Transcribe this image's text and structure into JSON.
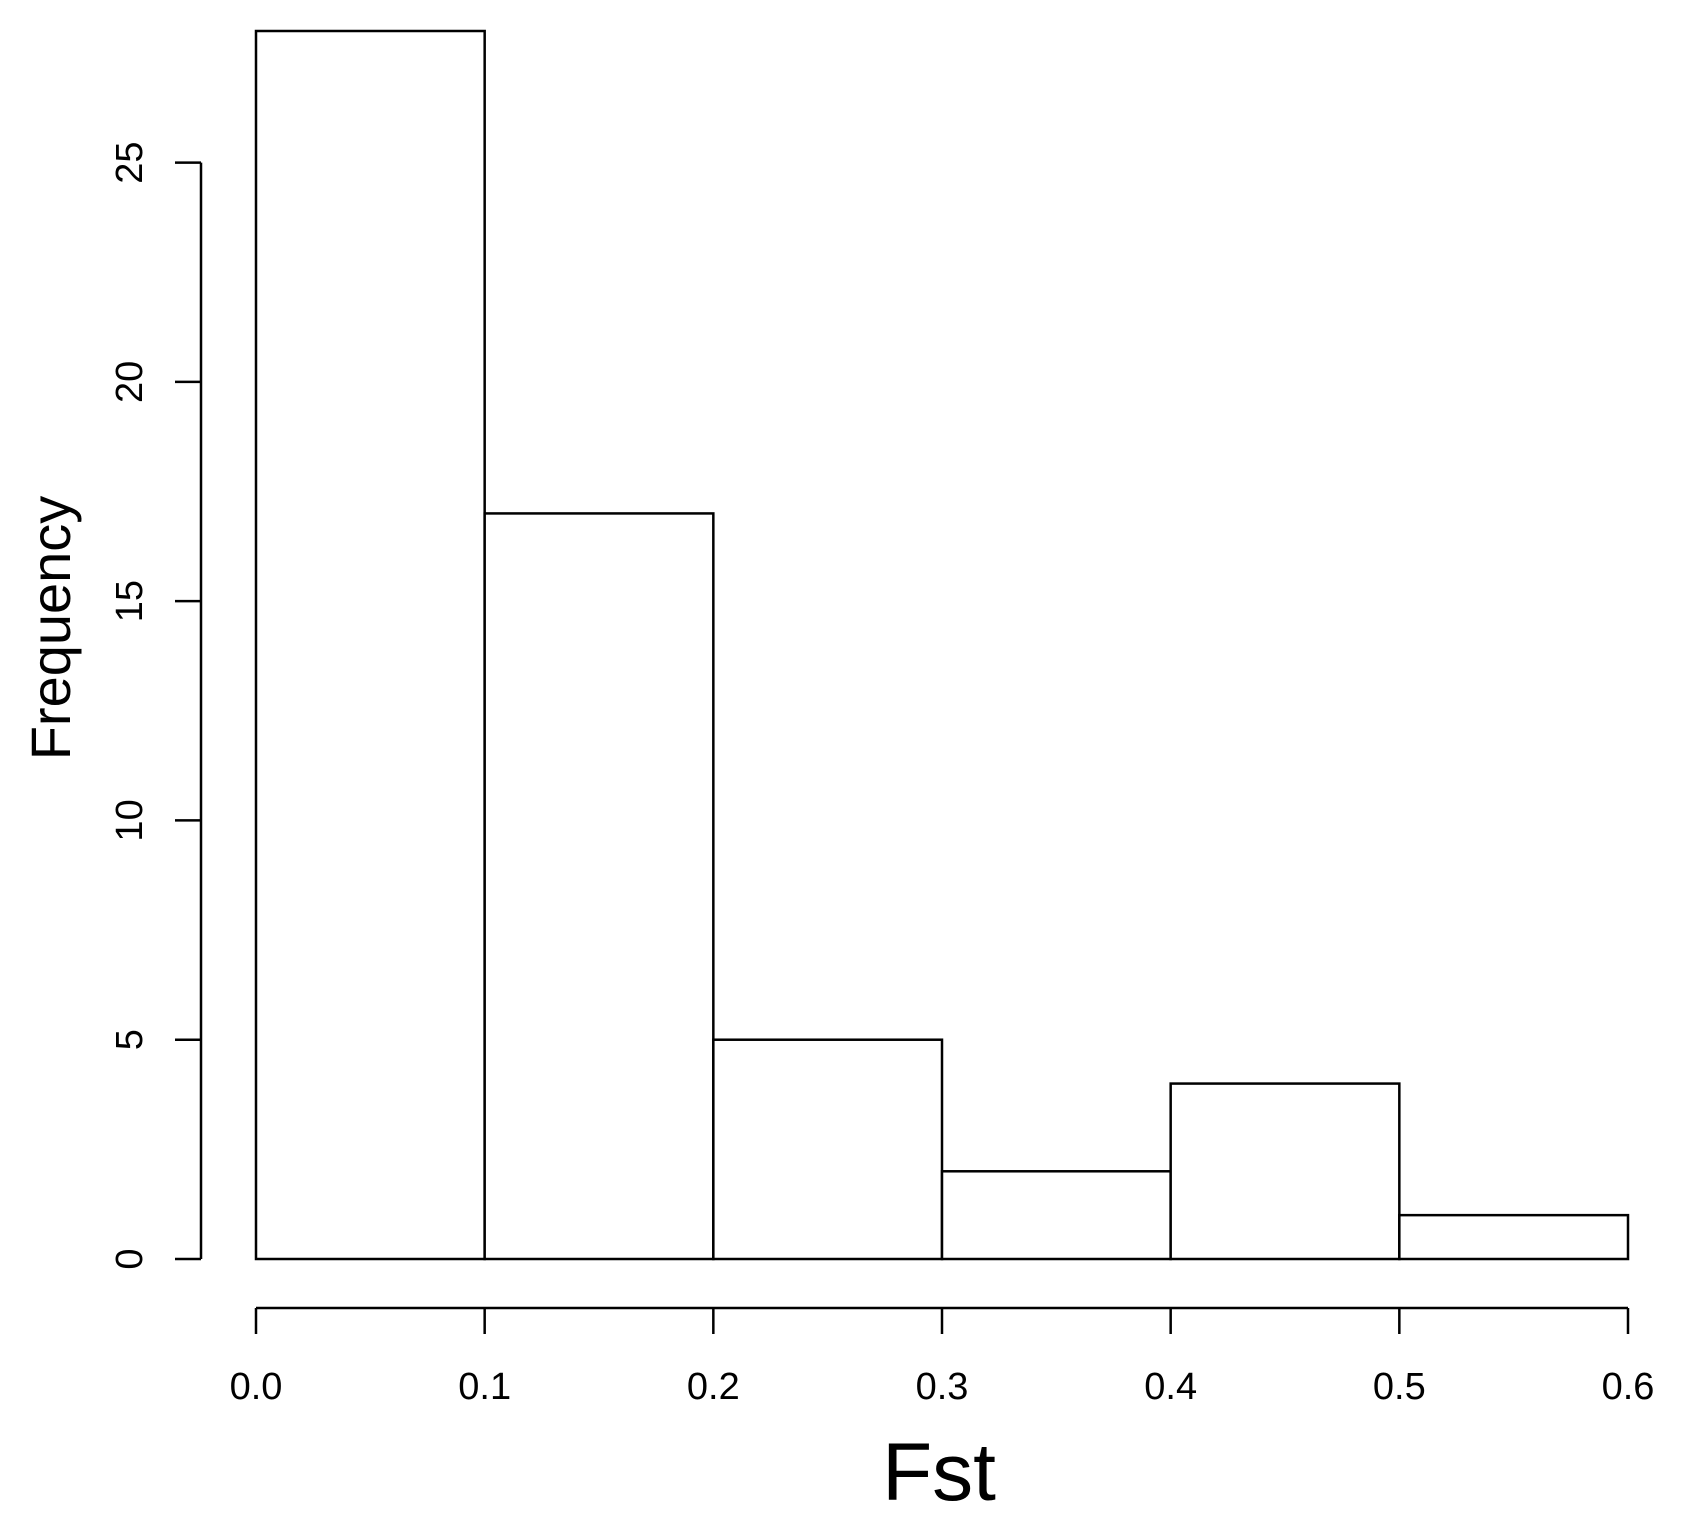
{
  "chart_data": {
    "type": "bar",
    "title": "",
    "xlabel": "Fst",
    "ylabel": "Frequency",
    "bins": [
      {
        "start": 0.0,
        "end": 0.1,
        "value": 28
      },
      {
        "start": 0.1,
        "end": 0.2,
        "value": 17
      },
      {
        "start": 0.2,
        "end": 0.3,
        "value": 5
      },
      {
        "start": 0.3,
        "end": 0.4,
        "value": 2
      },
      {
        "start": 0.4,
        "end": 0.5,
        "value": 4
      },
      {
        "start": 0.5,
        "end": 0.6,
        "value": 1
      }
    ],
    "xlim": [
      0.0,
      0.6
    ],
    "ylim": [
      0,
      28
    ],
    "x_ticks": [
      {
        "value": 0.0,
        "label": "0.0"
      },
      {
        "value": 0.1,
        "label": "0.1"
      },
      {
        "value": 0.2,
        "label": "0.2"
      },
      {
        "value": 0.3,
        "label": "0.3"
      },
      {
        "value": 0.4,
        "label": "0.4"
      },
      {
        "value": 0.5,
        "label": "0.5"
      },
      {
        "value": 0.6,
        "label": "0.6"
      }
    ],
    "y_ticks": [
      {
        "value": 0,
        "label": "0"
      },
      {
        "value": 5,
        "label": "5"
      },
      {
        "value": 10,
        "label": "10"
      },
      {
        "value": 15,
        "label": "15"
      },
      {
        "value": 20,
        "label": "20"
      },
      {
        "value": 25,
        "label": "25"
      }
    ],
    "grid": false,
    "legend": "none",
    "colors": {
      "bar_fill": "#ffffff",
      "bar_stroke": "#000000",
      "axis": "#000000"
    }
  }
}
